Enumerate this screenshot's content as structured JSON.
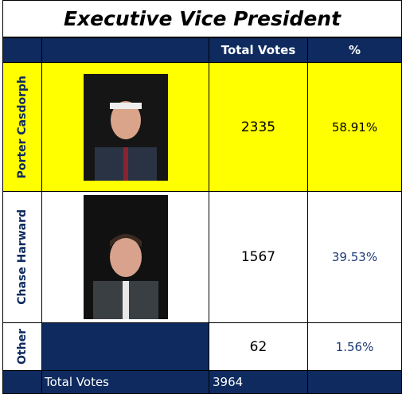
{
  "title": "Executive Vice President",
  "header": {
    "votes": "Total Votes",
    "percent": "%"
  },
  "rows": [
    {
      "name": "Porter Casdorph",
      "votes": 2335,
      "percent": "58.91%"
    },
    {
      "name": "Chase Harward",
      "votes": 1567,
      "percent": "39.53%"
    },
    {
      "name": "Other",
      "votes": 62,
      "percent": "1.56%"
    }
  ],
  "footer": {
    "label": "Total Votes",
    "total": 3964
  }
}
